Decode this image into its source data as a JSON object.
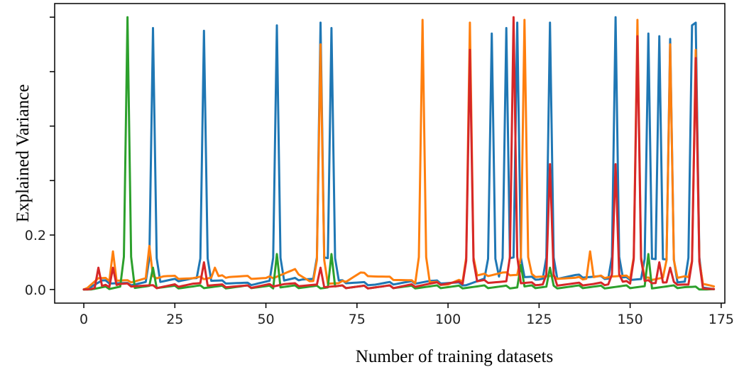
{
  "chart_data": {
    "type": "line",
    "xlabel": "Number of training datasets",
    "ylabel": "Explained Variance",
    "xlim": [
      -8,
      176
    ],
    "ylim": [
      -0.05,
      1.05
    ],
    "xticks": [
      0,
      25,
      50,
      75,
      100,
      125,
      150,
      175
    ],
    "yticks": [
      {
        "value": 0.0,
        "label": "0.0"
      },
      {
        "value": 0.2,
        "label": "0.2"
      },
      {
        "value": 0.4,
        "label": ""
      },
      {
        "value": 0.6,
        "label": ""
      },
      {
        "value": 0.8,
        "label": ""
      },
      {
        "value": 1.0,
        "label": ""
      }
    ],
    "grid": false,
    "series": [
      {
        "color": "#1f77b4",
        "spikes": [
          [
            19,
            0.96
          ],
          [
            33,
            0.95
          ],
          [
            53,
            0.97
          ],
          [
            65,
            0.98
          ],
          [
            68,
            0.96
          ],
          [
            112,
            0.94
          ],
          [
            116,
            0.96
          ],
          [
            119,
            0.98
          ],
          [
            128,
            0.98
          ],
          [
            146,
            1.0
          ],
          [
            155,
            0.94
          ],
          [
            158,
            0.93
          ],
          [
            161,
            0.92
          ],
          [
            167,
            0.97
          ],
          [
            168,
            0.98
          ]
        ],
        "baseline": [
          [
            0,
            0.0
          ],
          [
            5,
            0.03
          ],
          [
            12,
            0.02
          ],
          [
            20,
            0.03
          ],
          [
            30,
            0.04
          ],
          [
            45,
            0.02
          ],
          [
            60,
            0.04
          ],
          [
            70,
            0.03
          ],
          [
            80,
            0.02
          ],
          [
            95,
            0.03
          ],
          [
            105,
            0.02
          ],
          [
            115,
            0.05
          ],
          [
            125,
            0.04
          ],
          [
            135,
            0.05
          ],
          [
            150,
            0.04
          ],
          [
            165,
            0.03
          ],
          [
            173,
            0.0
          ]
        ]
      },
      {
        "color": "#ff7f0e",
        "spikes": [
          [
            8,
            0.14
          ],
          [
            18,
            0.16
          ],
          [
            36,
            0.08
          ],
          [
            65,
            0.9
          ],
          [
            93,
            0.99
          ],
          [
            106,
            0.98
          ],
          [
            121,
            0.99
          ],
          [
            139,
            0.14
          ],
          [
            152,
            0.99
          ],
          [
            161,
            0.9
          ],
          [
            168,
            0.88
          ]
        ],
        "baseline": [
          [
            0,
            0.0
          ],
          [
            4,
            0.04
          ],
          [
            12,
            0.03
          ],
          [
            22,
            0.05
          ],
          [
            30,
            0.04
          ],
          [
            40,
            0.05
          ],
          [
            50,
            0.04
          ],
          [
            58,
            0.07
          ],
          [
            62,
            0.03
          ],
          [
            70,
            0.02
          ],
          [
            76,
            0.06
          ],
          [
            80,
            0.05
          ],
          [
            85,
            0.04
          ],
          [
            90,
            0.03
          ],
          [
            100,
            0.02
          ],
          [
            108,
            0.05
          ],
          [
            115,
            0.06
          ],
          [
            125,
            0.05
          ],
          [
            135,
            0.04
          ],
          [
            145,
            0.05
          ],
          [
            155,
            0.04
          ],
          [
            165,
            0.05
          ],
          [
            173,
            0.01
          ]
        ]
      },
      {
        "color": "#2ca02c",
        "spikes": [
          [
            12,
            1.0
          ],
          [
            19,
            0.08
          ],
          [
            53,
            0.13
          ],
          [
            68,
            0.13
          ],
          [
            120,
            0.09
          ],
          [
            128,
            0.08
          ],
          [
            155,
            0.13
          ]
        ],
        "baseline": [
          [
            0,
            0.0
          ],
          [
            10,
            0.01
          ],
          [
            20,
            0.01
          ],
          [
            40,
            0.01
          ],
          [
            60,
            0.01
          ],
          [
            80,
            0.01
          ],
          [
            100,
            0.01
          ],
          [
            140,
            0.01
          ],
          [
            165,
            0.01
          ],
          [
            173,
            0.0
          ]
        ]
      },
      {
        "color": "#d62728",
        "spikes": [
          [
            4,
            0.08
          ],
          [
            8,
            0.08
          ],
          [
            33,
            0.1
          ],
          [
            65,
            0.08
          ],
          [
            106,
            0.88
          ],
          [
            117,
            0.12
          ],
          [
            118,
            1.0
          ],
          [
            128,
            0.46
          ],
          [
            146,
            0.46
          ],
          [
            152,
            0.93
          ],
          [
            158,
            0.1
          ],
          [
            161,
            0.08
          ],
          [
            168,
            0.85
          ]
        ],
        "baseline": [
          [
            0,
            0.0
          ],
          [
            10,
            0.02
          ],
          [
            20,
            0.01
          ],
          [
            30,
            0.02
          ],
          [
            45,
            0.01
          ],
          [
            55,
            0.02
          ],
          [
            70,
            0.01
          ],
          [
            85,
            0.01
          ],
          [
            95,
            0.02
          ],
          [
            110,
            0.03
          ],
          [
            125,
            0.02
          ],
          [
            140,
            0.02
          ],
          [
            155,
            0.03
          ],
          [
            165,
            0.02
          ],
          [
            173,
            0.0
          ]
        ]
      }
    ]
  }
}
